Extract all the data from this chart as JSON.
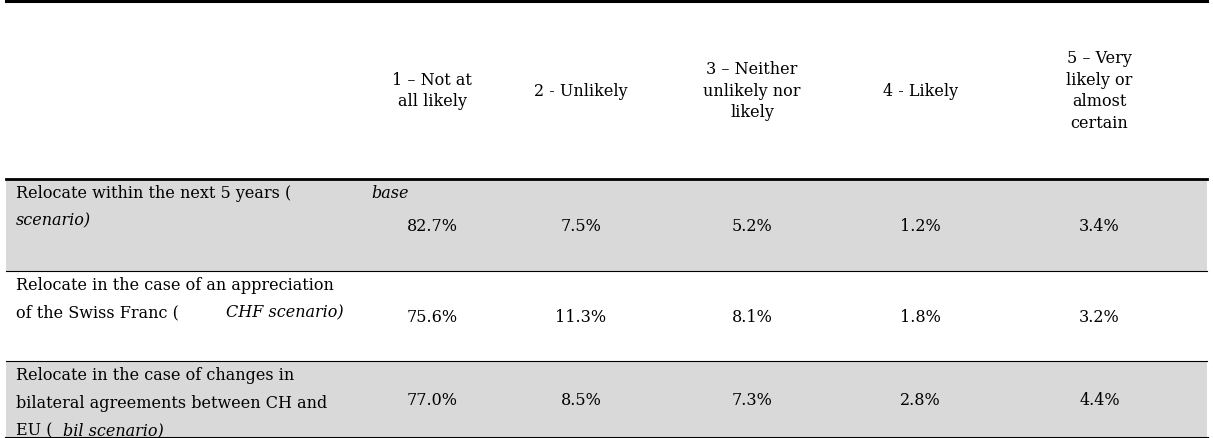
{
  "col_headers": [
    "1 – Not at\nall likely",
    "2 - Unlikely",
    "3 – Neither\nunlikely nor\nlikely",
    "4 - Likely",
    "5 – Very\nlikely or\nalmost\ncertain"
  ],
  "rows": [
    {
      "label_parts": [
        {
          "text": "Relocate within the next 5 years (",
          "style": "normal"
        },
        {
          "text": "base",
          "style": "italic"
        },
        {
          "text": "\n",
          "style": "normal"
        },
        {
          "text": "scenario)",
          "style": "italic"
        }
      ],
      "values": [
        "82.7%",
        "7.5%",
        "5.2%",
        "1.2%",
        "3.4%"
      ],
      "bg": "#d9d9d9"
    },
    {
      "label_parts": [
        {
          "text": "Relocate in the case of an appreciation\nof the Swiss Franc (",
          "style": "normal"
        },
        {
          "text": "CHF scenario)",
          "style": "italic"
        }
      ],
      "values": [
        "75.6%",
        "11.3%",
        "8.1%",
        "1.8%",
        "3.2%"
      ],
      "bg": "#ffffff"
    },
    {
      "label_parts": [
        {
          "text": "Relocate in the case of changes in\nbilateral agreements between CH and\nEU (",
          "style": "normal"
        },
        {
          "text": "bil scenario)",
          "style": "italic"
        }
      ],
      "values": [
        "77.0%",
        "8.5%",
        "7.3%",
        "2.8%",
        "4.4%"
      ],
      "bg": "#d9d9d9"
    }
  ],
  "background": "#ffffff",
  "text_color": "#000000",
  "font_size": 11.5,
  "font_family": "DejaVu Serif"
}
